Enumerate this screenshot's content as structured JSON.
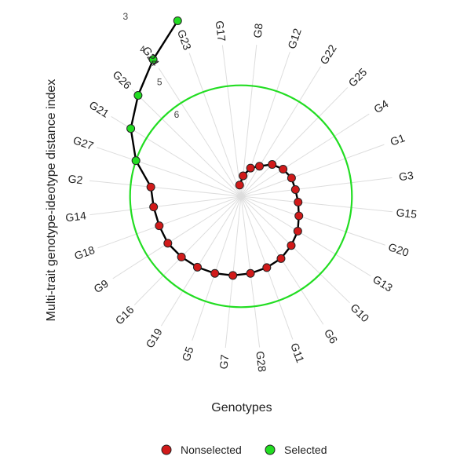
{
  "chart_data": {
    "type": "radar",
    "xlabel": "Genotypes",
    "ylabel": "Multi-trait genotype-ideotype distance index",
    "rticks": [
      "3",
      "4",
      "5",
      "6"
    ],
    "categories": [
      "G17",
      "G8",
      "G12",
      "G22",
      "G25",
      "G4",
      "G1",
      "G3",
      "G15",
      "G20",
      "G13",
      "G10",
      "G6",
      "G11",
      "G28",
      "G7",
      "G5",
      "G19",
      "G16",
      "G9",
      "G18",
      "G14",
      "G2",
      "G27",
      "G21",
      "G26",
      "G24",
      "G23"
    ],
    "values": [
      7.8,
      7.55,
      7.3,
      7.15,
      6.9,
      6.75,
      6.65,
      6.62,
      6.55,
      6.45,
      6.3,
      6.2,
      6.1,
      6.05,
      6.0,
      5.95,
      5.9,
      5.85,
      5.8,
      5.75,
      5.75,
      5.72,
      5.65,
      5.1,
      4.6,
      4.2,
      3.7,
      3.05
    ],
    "status": [
      "Nonselected",
      "Nonselected",
      "Nonselected",
      "Nonselected",
      "Nonselected",
      "Nonselected",
      "Nonselected",
      "Nonselected",
      "Nonselected",
      "Nonselected",
      "Nonselected",
      "Nonselected",
      "Nonselected",
      "Nonselected",
      "Nonselected",
      "Nonselected",
      "Nonselected",
      "Nonselected",
      "Nonselected",
      "Nonselected",
      "Nonselected",
      "Nonselected",
      "Nonselected",
      "Selected",
      "Selected",
      "Selected",
      "Selected",
      "Selected"
    ],
    "threshold": 5.1,
    "rlim": [
      3,
      8
    ],
    "legend": {
      "position": "bottom",
      "items": [
        {
          "label": "Nonselected",
          "color": "#d11a1a"
        },
        {
          "label": "Selected",
          "color": "#22dd22"
        }
      ]
    },
    "colors": {
      "nonselected": "#d11a1a",
      "selected": "#22dd22",
      "threshold_circle": "#22dd22",
      "line": "#000000",
      "grid": "#dddddd"
    }
  }
}
